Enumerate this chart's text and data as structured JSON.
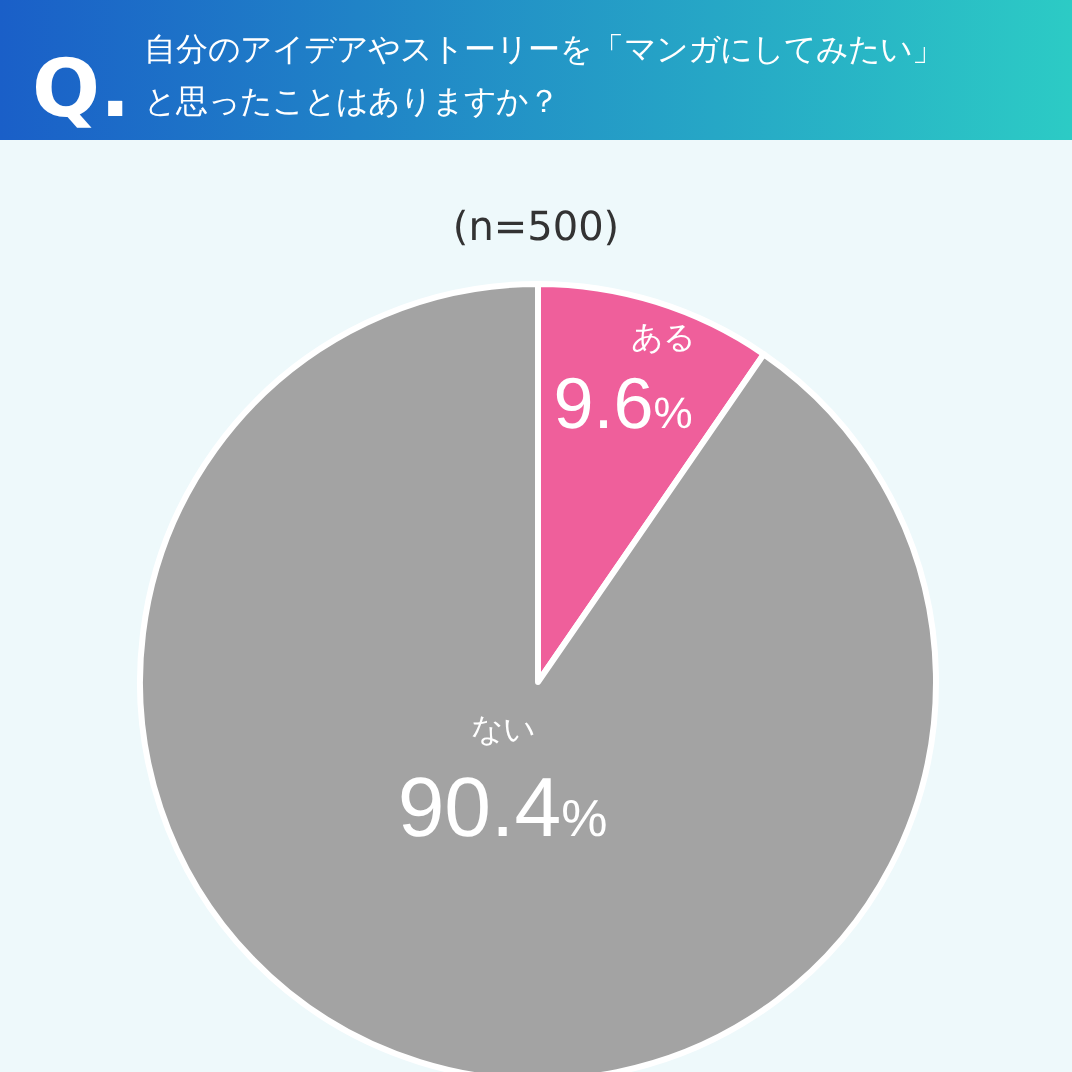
{
  "chart_data": {
    "type": "pie",
    "title": "Q. 自分のアイデアやストーリーを「マンガにしてみたい」と思ったことはありますか？",
    "subtitle": "(n=500)",
    "categories": [
      "ある",
      "ない"
    ],
    "values": [
      9.6,
      90.4
    ],
    "colors": [
      "#ef5f9b",
      "#a3a3a3"
    ],
    "value_labels": [
      "9.6%",
      "90.4%"
    ]
  }
}
